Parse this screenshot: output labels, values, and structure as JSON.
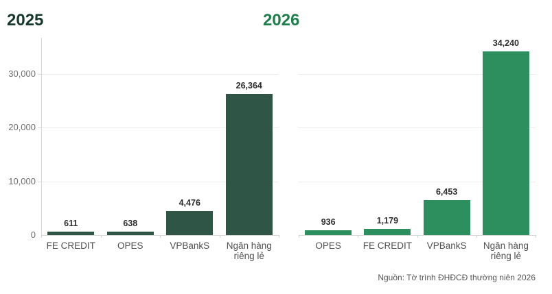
{
  "figure": {
    "background": "#ffffff"
  },
  "source_note": "Nguồn: Tờ trình ĐHĐCĐ thường niên 2026",
  "chart_data": [
    {
      "type": "bar",
      "title": "2025",
      "title_color": "#17382c",
      "bar_color": "#2e5546",
      "categories": [
        "FE CREDIT",
        "OPES",
        "VPBankS",
        "Ngân hàng riêng lẻ"
      ],
      "values": [
        611,
        638,
        4476,
        26364
      ],
      "value_labels": [
        "611",
        "638",
        "4,476",
        "26,364"
      ],
      "xlabel": "",
      "ylabel": "",
      "ylim": [
        0,
        36800
      ],
      "yticks": [
        0,
        10000,
        20000,
        30000
      ],
      "ytick_labels": [
        "0",
        "10,000",
        "20,000",
        "30,000"
      ],
      "show_ytick_labels": true,
      "show_yaxis_line": true,
      "grid": true,
      "legend": "none"
    },
    {
      "type": "bar",
      "title": "2026",
      "title_color": "#1f7f4b",
      "bar_color": "#2e8f5e",
      "categories": [
        "OPES",
        "FE CREDIT",
        "VPBankS",
        "Ngân hàng riêng lẻ"
      ],
      "values": [
        936,
        1179,
        6453,
        34240
      ],
      "value_labels": [
        "936",
        "1,179",
        "6,453",
        "34,240"
      ],
      "xlabel": "",
      "ylabel": "",
      "ylim": [
        0,
        36800
      ],
      "yticks": [
        0,
        10000,
        20000,
        30000
      ],
      "ytick_labels": [
        "0",
        "10,000",
        "20,000",
        "30,000"
      ],
      "show_ytick_labels": false,
      "show_yaxis_line": false,
      "grid": true,
      "legend": "none"
    }
  ]
}
